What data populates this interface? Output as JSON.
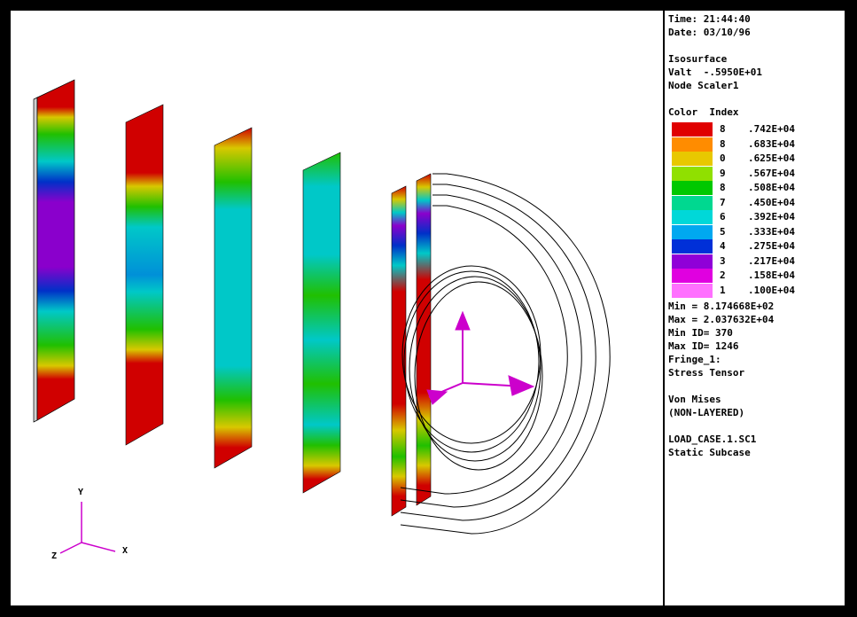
{
  "info": {
    "time": "Time: 21:44:40",
    "date": "Date: 03/10/96",
    "iso_title": "Isosurface",
    "iso_value": "Valt  -.5950E+01",
    "iso_node": "Node Scaler1",
    "color_index_title": "Color  Index"
  },
  "legend": [
    {
      "index": "8",
      "value": ".742E+04",
      "color": "#e00000"
    },
    {
      "index": "8",
      "value": ".683E+04",
      "color": "#ff8c00"
    },
    {
      "index": "0",
      "value": ".625E+04",
      "color": "#e8c800"
    },
    {
      "index": "9",
      "value": ".567E+04",
      "color": "#90e000"
    },
    {
      "index": "8",
      "value": ".508E+04",
      "color": "#00c800"
    },
    {
      "index": "7",
      "value": ".450E+04",
      "color": "#00d890"
    },
    {
      "index": "6",
      "value": ".392E+04",
      "color": "#00d8d8"
    },
    {
      "index": "5",
      "value": ".333E+04",
      "color": "#00a8f0"
    },
    {
      "index": "4",
      "value": ".275E+04",
      "color": "#0030d8"
    },
    {
      "index": "3",
      "value": ".217E+04",
      "color": "#9000d8"
    },
    {
      "index": "2",
      "value": ".158E+04",
      "color": "#e000e0"
    },
    {
      "index": "1",
      "value": ".100E+04",
      "color": "#ff70ff"
    }
  ],
  "stats": {
    "min": "Min = 8.174668E+02",
    "max": "Max = 2.037632E+04",
    "min_id": "Min ID= 370",
    "max_id": "Max ID= 1246",
    "fringe": "Fringe_1:",
    "stress": "Stress Tensor",
    "von": "Von Mises",
    "layer": "(NON-LAYERED)",
    "load": "LOAD_CASE.1.SC1",
    "subcase": "Static Subcase"
  },
  "axes": {
    "x": "X",
    "y": "Y",
    "z": "Z"
  },
  "colors": {
    "red": "#d80000",
    "orange": "#ff8c00",
    "yellow": "#d8d000",
    "green": "#30c800",
    "cyan": "#00c8c8",
    "blue": "#0020c8",
    "purple": "#8800cc",
    "magenta": "#cc00cc"
  }
}
